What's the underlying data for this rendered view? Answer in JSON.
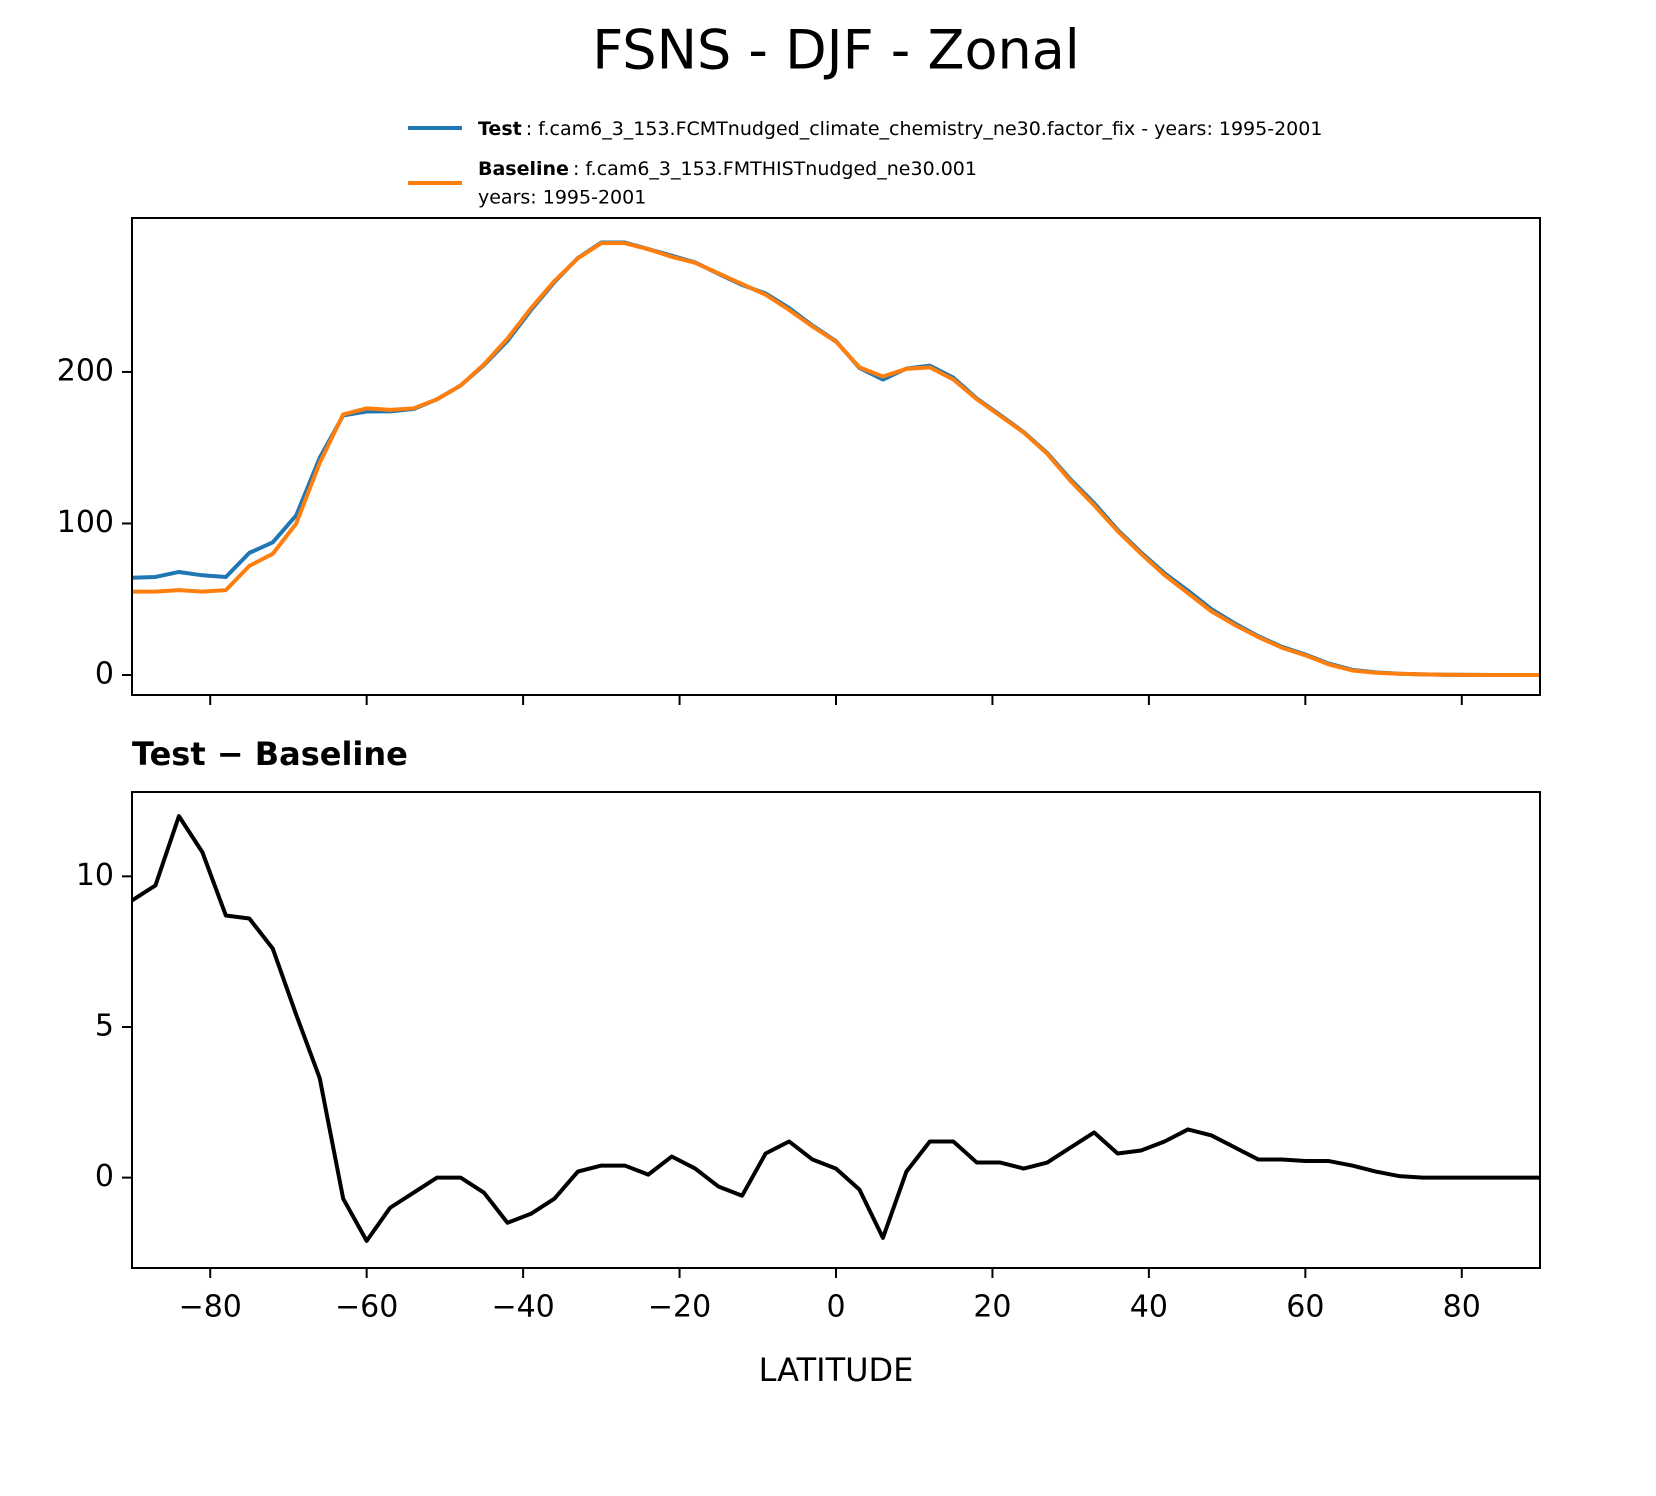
{
  "title": "FSNS - DJF - Zonal",
  "chart_data": [
    {
      "type": "line",
      "x": [
        -90,
        -87,
        -84,
        -81,
        -78,
        -75,
        -72,
        -69,
        -66,
        -63,
        -60,
        -57,
        -54,
        -51,
        -48,
        -45,
        -42,
        -39,
        -36,
        -33,
        -30,
        -27,
        -24,
        -21,
        -18,
        -15,
        -12,
        -9,
        -6,
        -3,
        0,
        3,
        6,
        9,
        12,
        15,
        18,
        21,
        24,
        27,
        30,
        33,
        36,
        39,
        42,
        45,
        48,
        51,
        54,
        57,
        60,
        63,
        66,
        69,
        72,
        75,
        78,
        81,
        84,
        87,
        90
      ],
      "series": [
        {
          "name": "Test",
          "label": ": f.cam6_3_153.FCMTnudged_climate_chemistry_ne30.factor_fix - years: 1995-2001",
          "color": "#1f77b4",
          "values": [
            64.2,
            64.7,
            68,
            65.8,
            64.7,
            80.6,
            87.6,
            105.4,
            143.3,
            171.3,
            173.9,
            174,
            175.5,
            182,
            191,
            204.5,
            220.5,
            240.8,
            259.3,
            275.2,
            285.4,
            285.4,
            281.1,
            276.7,
            272.3,
            264.7,
            257.4,
            251.8,
            242.2,
            230.6,
            220.3,
            202.6,
            195,
            202.2,
            204.2,
            196.2,
            182.5,
            171.5,
            160.3,
            146.5,
            129,
            113.5,
            95.8,
            80.9,
            67.2,
            55.6,
            43.4,
            34,
            25.6,
            18.6,
            13.55,
            7.55,
            3.4,
            1.7,
            0.85,
            0.4,
            0.2,
            0.1,
            0,
            0,
            0
          ]
        },
        {
          "name": "Baseline",
          "label": ": f.cam6_3_153.FMTHISTnudged_ne30.001",
          "label_line2": "years: 1995-2001",
          "color": "#ff7f0e",
          "values": [
            55,
            55,
            56,
            55,
            56,
            72,
            80,
            100,
            140,
            172,
            176,
            175,
            176,
            182,
            191,
            205,
            222,
            242,
            260,
            275,
            285,
            285,
            281,
            276,
            272,
            265,
            258,
            251,
            241,
            230,
            220,
            203,
            197,
            202,
            203,
            195,
            182,
            171,
            160,
            146,
            128,
            112,
            95,
            80,
            66,
            54,
            42,
            33,
            25,
            18,
            13,
            7,
            3,
            1.5,
            0.8,
            0.4,
            0.2,
            0.1,
            0,
            0,
            0
          ]
        }
      ],
      "xlim": [
        -90,
        90
      ],
      "ylim": [
        -13.2,
        301.6
      ],
      "xticks": [
        -80,
        -60,
        -40,
        -20,
        0,
        20,
        40,
        60,
        80
      ],
      "xtick_labels": false,
      "yticks": [
        0,
        100,
        200
      ]
    },
    {
      "type": "line",
      "title": "Test − Baseline",
      "xlabel": "LATITUDE",
      "x": [
        -90,
        -87,
        -84,
        -81,
        -78,
        -75,
        -72,
        -69,
        -66,
        -63,
        -60,
        -57,
        -54,
        -51,
        -48,
        -45,
        -42,
        -39,
        -36,
        -33,
        -30,
        -27,
        -24,
        -21,
        -18,
        -15,
        -12,
        -9,
        -6,
        -3,
        0,
        3,
        6,
        9,
        12,
        15,
        18,
        21,
        24,
        27,
        30,
        33,
        36,
        39,
        42,
        45,
        48,
        51,
        54,
        57,
        60,
        63,
        66,
        69,
        72,
        75,
        78,
        81,
        84,
        87,
        90
      ],
      "series": [
        {
          "color": "#000000",
          "values": [
            9.2,
            9.7,
            12.0,
            10.8,
            8.7,
            8.6,
            7.6,
            5.4,
            3.3,
            -0.7,
            -2.1,
            -1.0,
            -0.5,
            0.0,
            0.0,
            -0.5,
            -1.5,
            -1.2,
            -0.7,
            0.2,
            0.4,
            0.4,
            0.1,
            0.7,
            0.3,
            -0.3,
            -0.6,
            0.8,
            1.2,
            0.6,
            0.3,
            -0.4,
            -2.0,
            0.2,
            1.2,
            1.2,
            0.5,
            0.5,
            0.3,
            0.5,
            1.0,
            1.5,
            0.8,
            0.9,
            1.2,
            1.6,
            1.4,
            1.0,
            0.6,
            0.6,
            0.55,
            0.55,
            0.4,
            0.2,
            0.05,
            0,
            0,
            0,
            0,
            0,
            0
          ]
        }
      ],
      "xlim": [
        -90,
        90
      ],
      "ylim": [
        -3,
        12.8
      ],
      "xticks": [
        {
          "value": -80,
          "label": "−80"
        },
        {
          "value": -60,
          "label": "−60"
        },
        {
          "value": -40,
          "label": "−40"
        },
        {
          "value": -20,
          "label": "−20"
        },
        0,
        20,
        40,
        60,
        80
      ],
      "xtick_labels": true,
      "yticks": [
        0,
        5,
        10
      ]
    }
  ]
}
